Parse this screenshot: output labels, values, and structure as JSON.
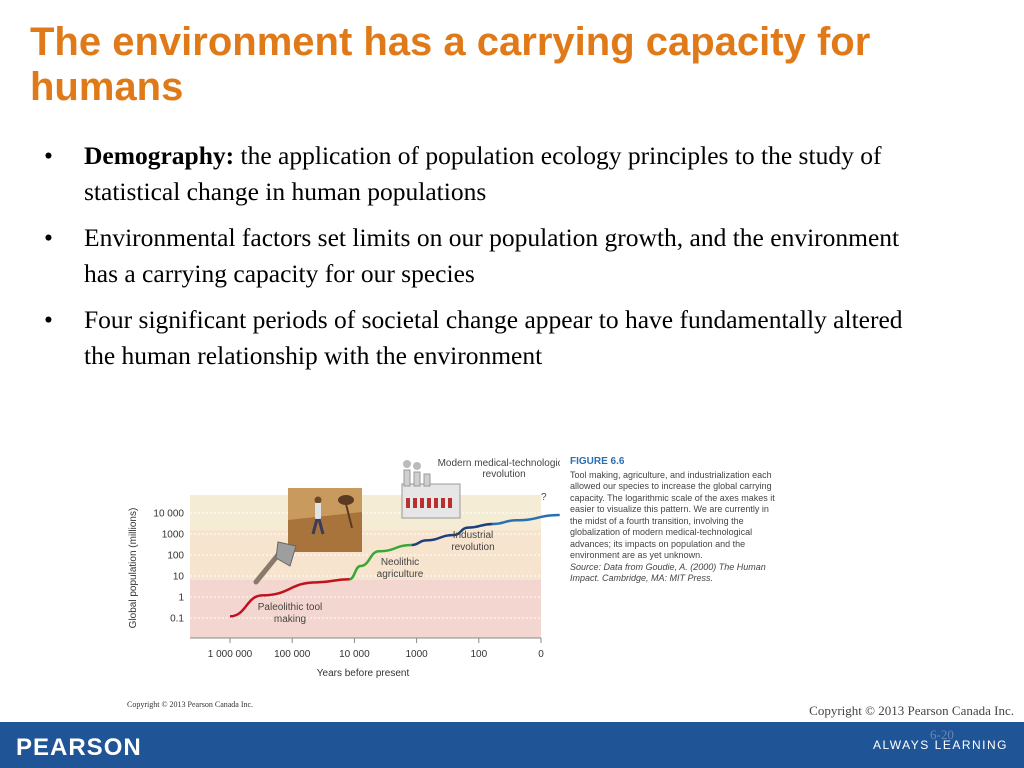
{
  "slide": {
    "title": "The environment has a carrying capacity for humans",
    "bullets": [
      {
        "bold": "Demography:",
        "text": " the application of population ecology principles to the study of statistical change in human populations"
      },
      {
        "bold": "",
        "text": "Environmental factors set limits on our population growth, and the environment has a carrying capacity for our species"
      },
      {
        "bold": "",
        "text": "Four significant periods of societal change appear to have fundamentally altered the human relationship with the environment"
      }
    ],
    "bullet_symbol": "•"
  },
  "figure": {
    "caption_title": "FIGURE 6.6",
    "caption_text": "Tool making, agriculture, and industrialization each allowed our species to increase the global carrying capacity. The logarithmic scale of the axes makes it easier to visualize this pattern. We are currently in the midst of a fourth transition, involving the globalization of modern medical-technological advances; its impacts on population and the environment are as yet unknown.",
    "caption_source": "Source: Data from Goudie, A. (2000) The Human Impact. Cambridge, MA: MIT Press.",
    "small_copyright": "Copyright © 2013 Pearson Canada Inc."
  },
  "chart_data": {
    "type": "line",
    "xlabel": "Years before present",
    "ylabel": "Global population (millions)",
    "x_scale": "log",
    "y_scale": "log",
    "x_ticks": [
      "1 000 000",
      "100 000",
      "10 000",
      "1000",
      "100",
      "0"
    ],
    "y_ticks": [
      "10 000",
      "1000",
      "100",
      "10",
      "1",
      "0.1"
    ],
    "bands": [
      {
        "name": "Paleolithic",
        "color": "#f3d6cf"
      },
      {
        "name": "Neolithic",
        "color": "#f7e4cf"
      },
      {
        "name": "Industrial",
        "color": "#f5ecd6"
      }
    ],
    "series": [
      {
        "name": "Paleolithic tool making",
        "color": "#c0121c",
        "points": [
          [
            1000000,
            0.12
          ],
          [
            300000,
            1.2
          ],
          [
            40000,
            5
          ],
          [
            12000,
            7
          ]
        ]
      },
      {
        "name": "Neolithic agriculture",
        "color": "#3aa635",
        "points": [
          [
            12000,
            7
          ],
          [
            8000,
            30
          ],
          [
            4000,
            150
          ],
          [
            1200,
            300
          ]
        ]
      },
      {
        "name": "Industrial revolution",
        "color": "#1f3f7a",
        "points": [
          [
            1200,
            300
          ],
          [
            700,
            500
          ],
          [
            250,
            900
          ],
          [
            150,
            2000
          ],
          [
            60,
            3000
          ]
        ]
      },
      {
        "name": "Modern medical-technological revolution",
        "color": "#2b6fb2",
        "points": [
          [
            60,
            3000
          ],
          [
            25,
            4500
          ],
          [
            5,
            8000
          ]
        ]
      }
    ],
    "annotations": [
      {
        "label": "Paleolithic tool making"
      },
      {
        "label": "Neolithic agriculture"
      },
      {
        "label": "Industrial revolution"
      },
      {
        "label": "Modern medical-technological revolution"
      },
      {
        "label": "?"
      }
    ]
  },
  "footer": {
    "copyright": "Copyright © 2013 Pearson Canada Inc.",
    "slide_number": "6-20",
    "brand": "PEARSON",
    "tagline": "ALWAYS LEARNING"
  },
  "colors": {
    "title": "#e07a18",
    "footer": "#1f5597",
    "caption_title": "#2b6fb2"
  },
  "icons": [
    "factory-icon",
    "stone-axe-icon",
    "farmers-photo"
  ]
}
